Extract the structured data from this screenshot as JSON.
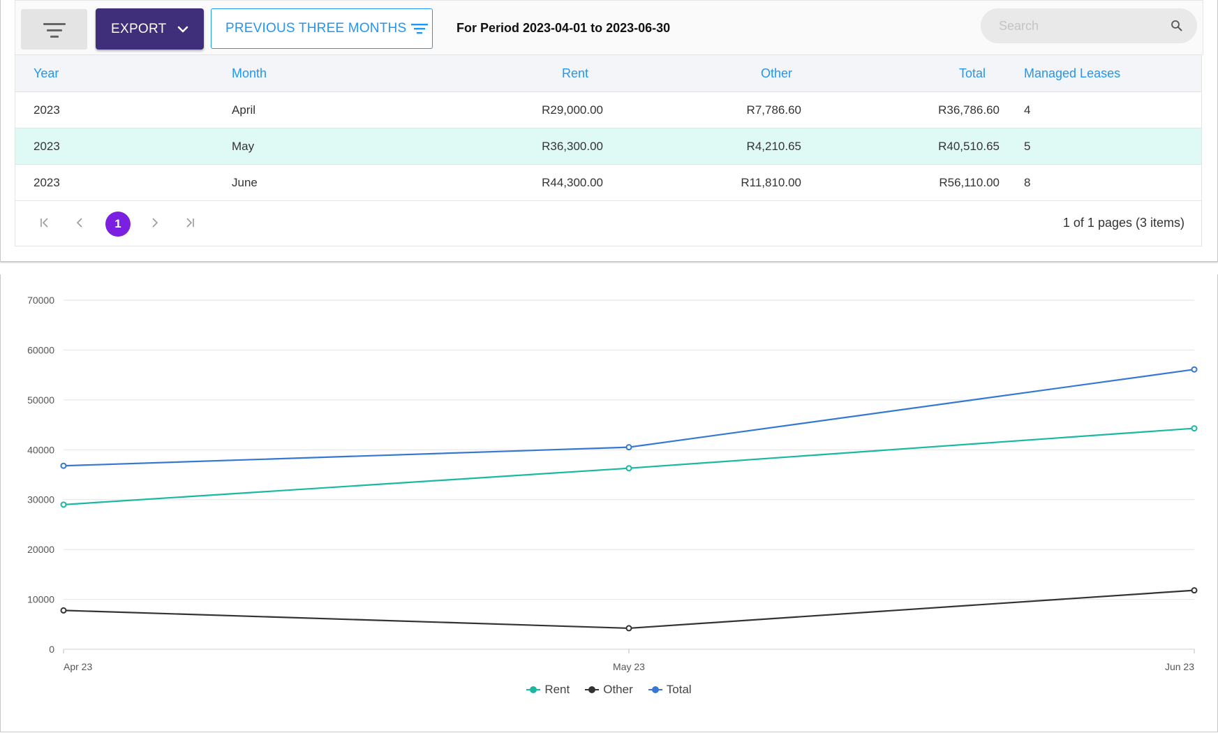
{
  "toolbar": {
    "export_label": "EXPORT",
    "period_button_label": "PREVIOUS THREE MONTHS",
    "period_text": "For Period 2023-04-01 to 2023-06-30",
    "search_placeholder": "Search"
  },
  "table": {
    "columns": [
      "Year",
      "Month",
      "Rent",
      "Other",
      "Total",
      "Managed Leases"
    ],
    "rows": [
      {
        "year": "2023",
        "month": "April",
        "rent": "R29,000.00",
        "other": "R7,786.60",
        "total": "R36,786.60",
        "leases": "4"
      },
      {
        "year": "2023",
        "month": "May",
        "rent": "R36,300.00",
        "other": "R4,210.65",
        "total": "R40,510.65",
        "leases": "5"
      },
      {
        "year": "2023",
        "month": "June",
        "rent": "R44,300.00",
        "other": "R11,810.00",
        "total": "R56,110.00",
        "leases": "8"
      }
    ],
    "selected_row": 1
  },
  "pager": {
    "current_page": "1",
    "info": "1 of 1 pages (3 items)"
  },
  "colors": {
    "accent": "#2196f3",
    "export": "#3f2f7a",
    "page_active": "#7b1fe0",
    "selected_row": "#dffaf5"
  },
  "chart_data": {
    "type": "line",
    "categories": [
      "Apr 23",
      "May 23",
      "Jun 23"
    ],
    "series": [
      {
        "name": "Rent",
        "color": "#1ab8a1",
        "values": [
          29000,
          36300,
          44300
        ]
      },
      {
        "name": "Other",
        "color": "#333333",
        "values": [
          7786.6,
          4210.65,
          11810
        ]
      },
      {
        "name": "Total",
        "color": "#3478d4",
        "values": [
          36786.6,
          40510.65,
          56110
        ]
      }
    ],
    "yticks": [
      "0",
      "10000",
      "20000",
      "30000",
      "40000",
      "50000",
      "60000",
      "70000"
    ],
    "ylim": [
      0,
      70000
    ],
    "grid": true,
    "legend": "bottom-center"
  }
}
